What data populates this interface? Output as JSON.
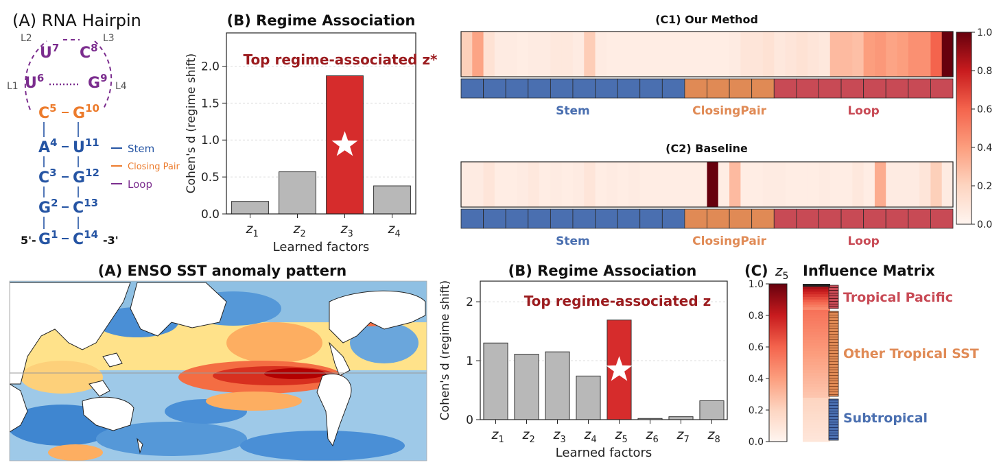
{
  "colors": {
    "stem": "#2554a3",
    "closing": "#ec7b2c",
    "loop": "#7b2d8e",
    "bar_gray": "#b8b8b8",
    "bar_highlight": "#d62c2c",
    "annotation": "#9b1b1e",
    "seg_stem": "#4a6fb0",
    "seg_closing": "#e08a55",
    "seg_loop": "#c84a55"
  },
  "hairpin": {
    "title": "(A)  RNA Hairpin",
    "loop_labels": [
      "L1",
      "L2",
      "L3",
      "L4"
    ],
    "loop_nodes": [
      {
        "base": "U",
        "num": "6"
      },
      {
        "base": "U",
        "num": "7"
      },
      {
        "base": "C",
        "num": "8"
      },
      {
        "base": "G",
        "num": "9"
      }
    ],
    "pairs": [
      {
        "left": "C",
        "lnum": "5",
        "right": "G",
        "rnum": "10",
        "kind": "closing"
      },
      {
        "left": "A",
        "lnum": "4",
        "right": "U",
        "rnum": "11",
        "kind": "stem"
      },
      {
        "left": "C",
        "lnum": "3",
        "right": "G",
        "rnum": "12",
        "kind": "stem"
      },
      {
        "left": "G",
        "lnum": "2",
        "right": "C",
        "rnum": "13",
        "kind": "stem"
      },
      {
        "left": "G",
        "lnum": "1",
        "right": "C",
        "rnum": "14",
        "kind": "stem"
      }
    ],
    "five_prime": "5'-",
    "three_prime": "-3'",
    "legend": [
      "Stem",
      "Closing Pair",
      "Loop"
    ]
  },
  "rna_groups": [
    "Stem",
    "ClosingPair",
    "Loop"
  ],
  "enso": {
    "title": "(A) ENSO SST anomaly pattern"
  },
  "chart_data": [
    {
      "id": "rna_regime",
      "type": "bar",
      "title": "(B) Regime Association",
      "categories": [
        "z1",
        "z2",
        "z3",
        "z4"
      ],
      "values": [
        0.17,
        0.57,
        1.87,
        0.38
      ],
      "highlight_index": 2,
      "annotation": "Top regime-associated z*",
      "xlabel": "Learned factors",
      "ylabel": "Cohen's d  (regime shift)",
      "ylim": [
        0,
        2.45
      ],
      "yticks": [
        "0.0",
        "0.5",
        "1.0",
        "1.5",
        "2.0"
      ],
      "grid": "horizontal dashed"
    },
    {
      "id": "c1",
      "type": "heatmap",
      "title": "(C1) Our Method",
      "values": [
        0.22,
        0.38,
        0.12,
        0.06,
        0.06,
        0.05,
        0.06,
        0.06,
        0.08,
        0.08,
        0.06,
        0.23,
        0.06,
        0.05,
        0.05,
        0.05,
        0.05,
        0.05,
        0.05,
        0.05,
        0.05,
        0.05,
        0.05,
        0.05,
        0.06,
        0.1,
        0.1,
        0.12,
        0.08,
        0.1,
        0.12,
        0.1,
        0.08,
        0.3,
        0.3,
        0.28,
        0.4,
        0.42,
        0.38,
        0.4,
        0.45,
        0.45,
        0.6,
        1.0
      ],
      "groups": [
        {
          "name": "Stem",
          "count": 10
        },
        {
          "name": "ClosingPair",
          "count": 4
        },
        {
          "name": "Loop",
          "count": 8
        }
      ]
    },
    {
      "id": "c2",
      "type": "heatmap",
      "title": "(C2) Baseline",
      "values": [
        0.06,
        0.06,
        0.1,
        0.05,
        0.05,
        0.06,
        0.08,
        0.05,
        0.06,
        0.05,
        0.06,
        0.1,
        0.05,
        0.06,
        0.05,
        0.06,
        0.05,
        0.05,
        0.05,
        0.05,
        0.05,
        0.05,
        1.0,
        0.05,
        0.3,
        0.05,
        0.05,
        0.06,
        0.06,
        0.05,
        0.05,
        0.05,
        0.06,
        0.05,
        0.05,
        0.08,
        0.05,
        0.35,
        0.06,
        0.06,
        0.06,
        0.1,
        0.22,
        0.06
      ],
      "groups": [
        {
          "name": "Stem",
          "count": 10
        },
        {
          "name": "ClosingPair",
          "count": 4
        },
        {
          "name": "Loop",
          "count": 8
        }
      ]
    },
    {
      "id": "heat_colorbar",
      "type": "colorbar",
      "ticks": [
        "0.0",
        "0.2",
        "0.4",
        "0.6",
        "0.8",
        "1.0"
      ],
      "ylim": [
        0,
        1
      ]
    },
    {
      "id": "enso_regime",
      "type": "bar",
      "title": "(B) Regime Association",
      "categories": [
        "z1",
        "z2",
        "z3",
        "z4",
        "z5",
        "z6",
        "z7",
        "z8"
      ],
      "values": [
        1.3,
        1.11,
        1.15,
        0.74,
        1.69,
        0.02,
        0.05,
        0.32
      ],
      "highlight_index": 4,
      "annotation": "Top regime-associated z",
      "xlabel": "Learned factors",
      "ylabel": "Cohen's d  (regime shift)",
      "ylim": [
        0,
        2.35
      ],
      "yticks": [
        "0",
        "1",
        "2"
      ],
      "grid": "horizontal dashed"
    },
    {
      "id": "enso_influence",
      "type": "heatmap",
      "title": "(C)",
      "colorbar_label": "z5",
      "matrix_title": "Influence Matrix",
      "yticks": [
        "0.0",
        "0.2",
        "0.4",
        "0.6",
        "0.8",
        "1.0"
      ],
      "ylim": [
        0,
        1
      ],
      "groups": [
        "Tropical Pacific",
        "Other Tropical SST",
        "Subtropical"
      ],
      "group_levels": [
        0.92,
        0.55,
        0.2
      ]
    }
  ]
}
